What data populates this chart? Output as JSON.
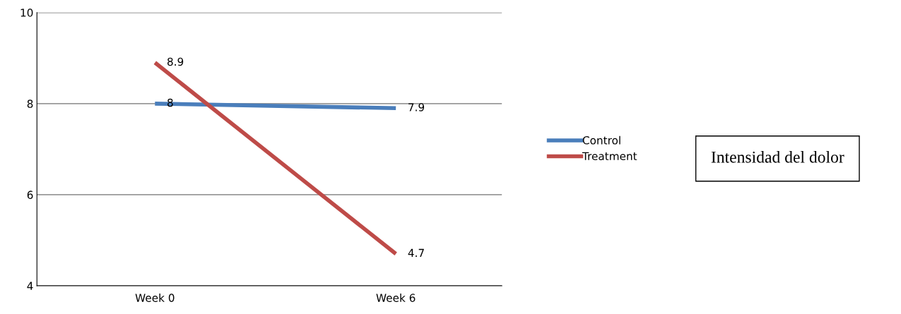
{
  "chart_data": {
    "type": "line",
    "title": "Intensidad del dolor",
    "categories": [
      "Week 0",
      "Week 6"
    ],
    "series": [
      {
        "name": "Control",
        "color": "#4a7ebb",
        "values": [
          8,
          7.9
        ]
      },
      {
        "name": "Treatment",
        "color": "#be4b48",
        "values": [
          8.9,
          4.7
        ]
      }
    ],
    "ylim": [
      4,
      10
    ],
    "yticks": [
      4,
      6,
      8,
      10
    ],
    "grid": "y",
    "legend": "right",
    "data_labels": true,
    "marker": "none",
    "line_style": "solid"
  }
}
